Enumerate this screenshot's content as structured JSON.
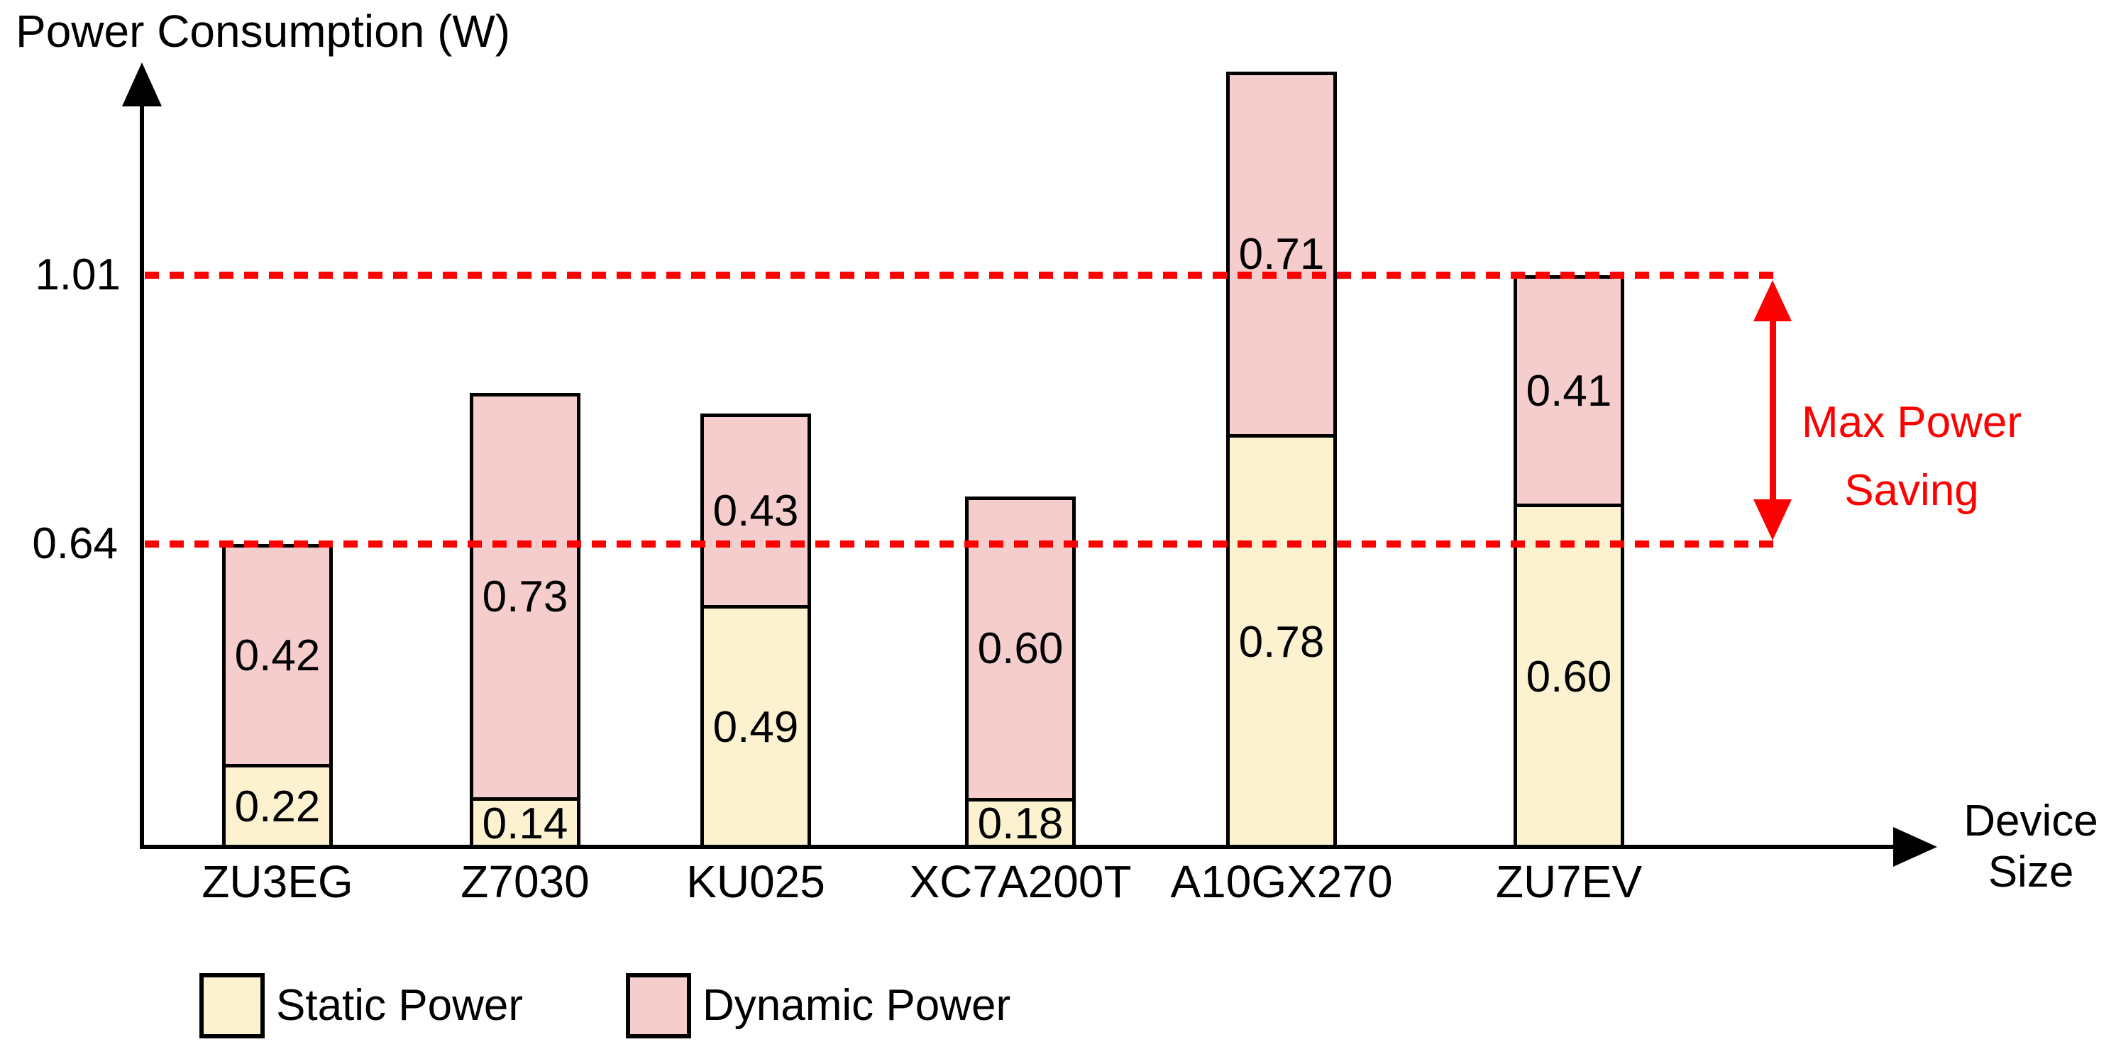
{
  "title": "Power Consumption (W)",
  "y_ticks": {
    "upper": "1.01",
    "lower": "0.64"
  },
  "x_axis_title": {
    "line1": "Device",
    "line2": "Size"
  },
  "annotation": {
    "line1": "Max Power",
    "line2": "Saving"
  },
  "legend": {
    "static_label": "Static Power",
    "dynamic_label": "Dynamic Power"
  },
  "colors": {
    "static_fill": "#FCF2CF",
    "dynamic_fill": "#F6CDCD",
    "annotation_red": "#FF0000",
    "outline": "#000000"
  },
  "chart_data": {
    "type": "bar",
    "stacked": true,
    "categories": [
      "ZU3EG",
      "Z7030",
      "KU025",
      "XC7A200T",
      "A10GX270",
      "ZU7EV"
    ],
    "series": [
      {
        "name": "Static Power",
        "values": [
          0.22,
          0.14,
          0.49,
          0.18,
          0.78,
          0.6
        ]
      },
      {
        "name": "Dynamic Power",
        "values": [
          0.42,
          0.73,
          0.43,
          0.6,
          0.71,
          0.41
        ]
      }
    ],
    "reference_lines": [
      1.01,
      0.64
    ],
    "title": "",
    "xlabel": "Device Size",
    "ylabel": "Power Consumption (W)",
    "annotation": "Max Power Saving",
    "legend_position": "bottom",
    "grid": false
  }
}
